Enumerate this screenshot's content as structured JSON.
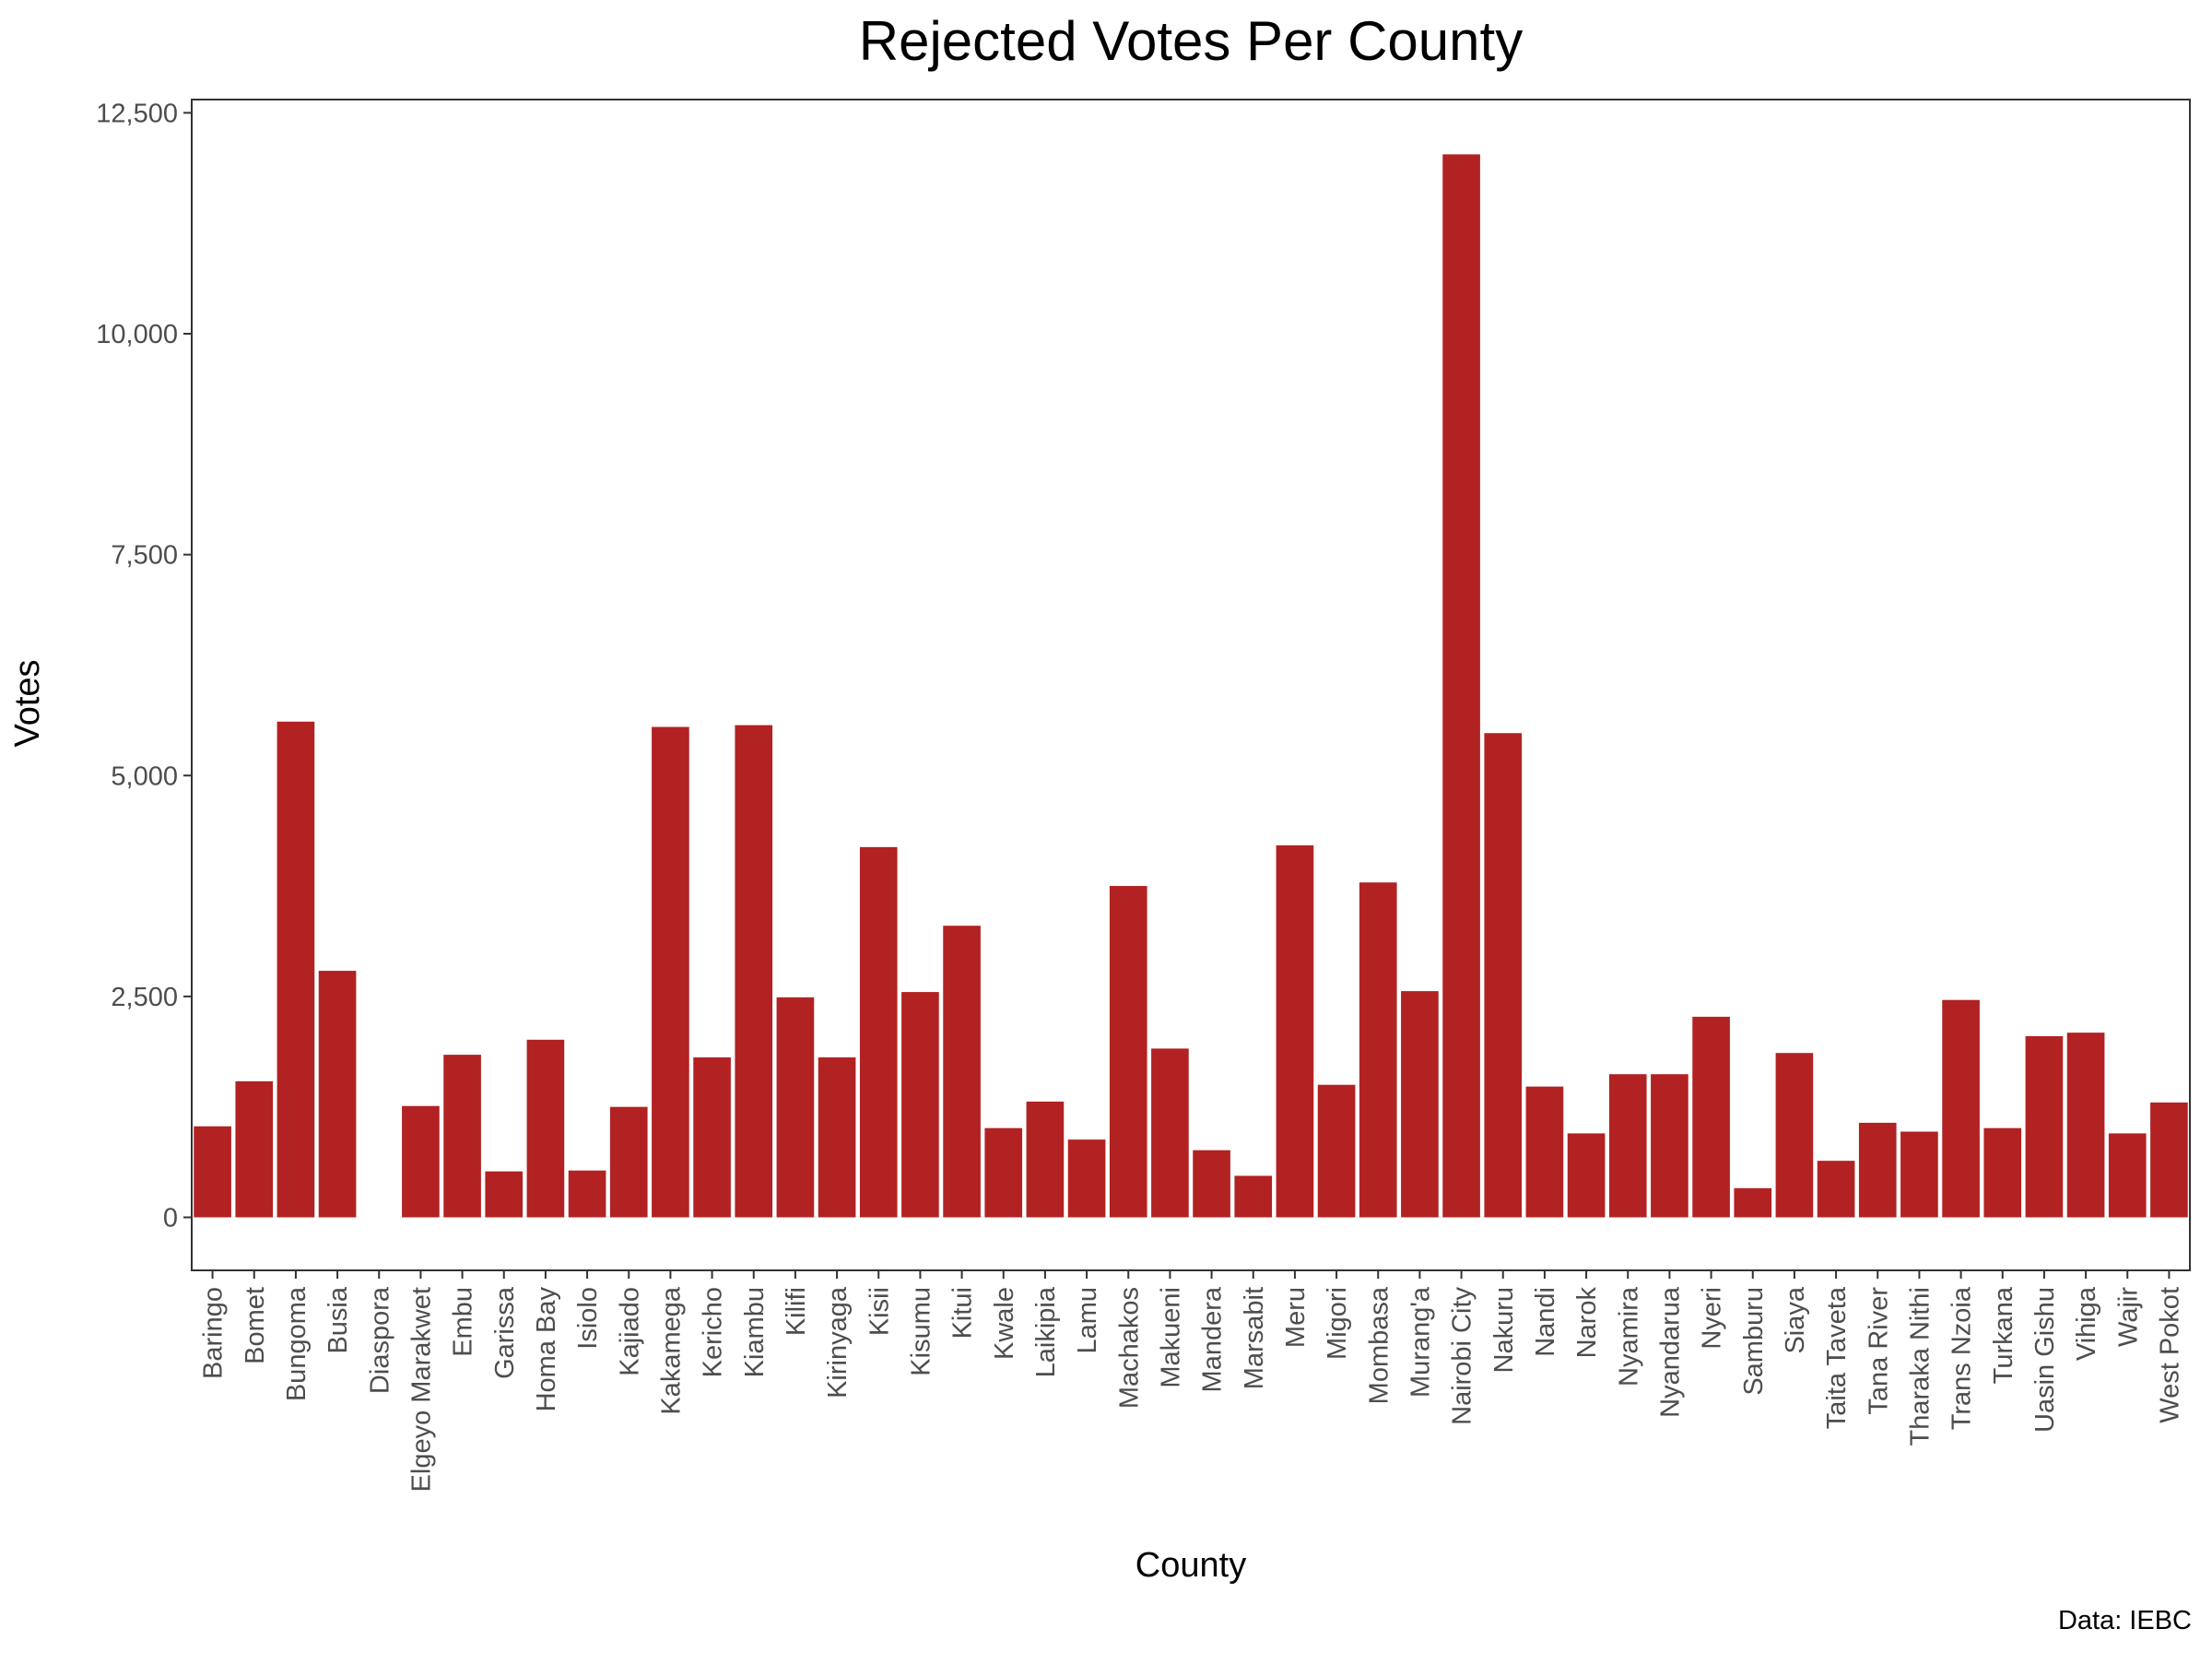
{
  "chart_data": {
    "type": "bar",
    "title": "Rejected Votes Per County",
    "xlabel": "County",
    "ylabel": "Votes",
    "caption": "Data: IEBC",
    "ylim": [
      -600,
      12650
    ],
    "y_ticks": [
      0,
      2500,
      5000,
      7500,
      10000,
      12500
    ],
    "y_tick_labels": [
      "0",
      "2,500",
      "5,000",
      "7,500",
      "10,000",
      "12,500"
    ],
    "grid": false,
    "bar_color": "#b22222",
    "categories": [
      "Baringo",
      "Bomet",
      "Bungoma",
      "Busia",
      "Diaspora",
      "Elgeyo Marakwet",
      "Embu",
      "Garissa",
      "Homa Bay",
      "Isiolo",
      "Kajiado",
      "Kakamega",
      "Kericho",
      "Kiambu",
      "Kilifi",
      "Kirinyaga",
      "Kisii",
      "Kisumu",
      "Kitui",
      "Kwale",
      "Laikipia",
      "Lamu",
      "Machakos",
      "Makueni",
      "Mandera",
      "Marsabit",
      "Meru",
      "Migori",
      "Mombasa",
      "Murang'a",
      "Nairobi City",
      "Nakuru",
      "Nandi",
      "Narok",
      "Nyamira",
      "Nyandarua",
      "Nyeri",
      "Samburu",
      "Siaya",
      "Taita Taveta",
      "Tana River",
      "Tharaka Nithi",
      "Trans Nzoia",
      "Turkana",
      "Uasin Gishu",
      "Vihiga",
      "Wajir",
      "West Pokot"
    ],
    "values": [
      1030,
      1540,
      5610,
      2790,
      0,
      1260,
      1840,
      520,
      2010,
      530,
      1250,
      5550,
      1810,
      5570,
      2490,
      1810,
      4190,
      2550,
      3300,
      1010,
      1310,
      880,
      3750,
      1910,
      760,
      470,
      4210,
      1500,
      3790,
      2560,
      12030,
      5480,
      1480,
      950,
      1620,
      1620,
      2270,
      330,
      1860,
      640,
      1070,
      970,
      2460,
      1010,
      2050,
      2090,
      950,
      1300
    ]
  }
}
